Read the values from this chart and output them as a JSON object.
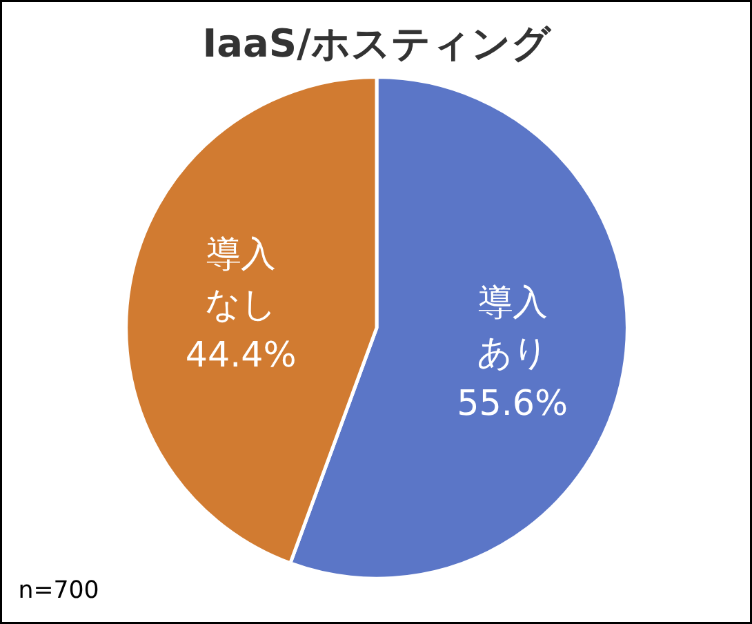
{
  "chart_data": {
    "type": "pie",
    "title": "IaaS/ホスティング",
    "categories": [
      "導入あり",
      "導入なし"
    ],
    "values": [
      55.6,
      44.4
    ],
    "colors": [
      "#5b76c7",
      "#d17b31"
    ],
    "value_labels": [
      "55.6%",
      "44.4%"
    ],
    "annotations": [
      "n=700"
    ]
  }
}
